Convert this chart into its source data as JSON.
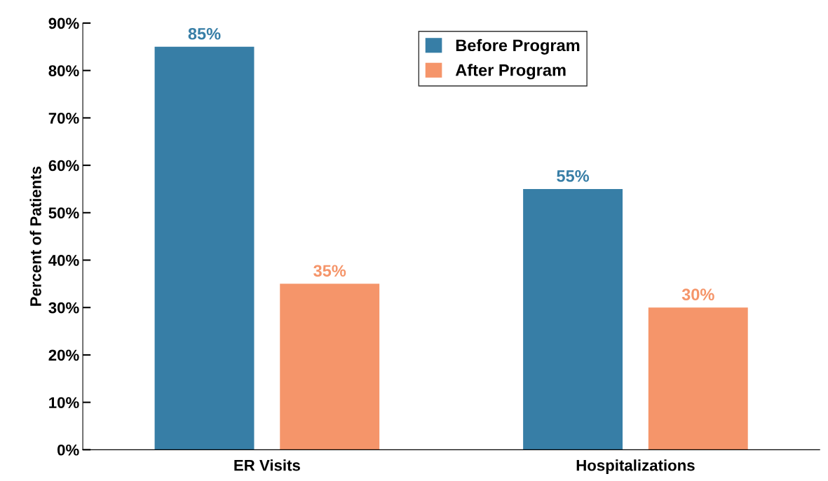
{
  "chart_data": {
    "type": "bar",
    "ylabel": "Percent of Patients",
    "categories": [
      "ER Visits",
      "Hospitalizations"
    ],
    "series": [
      {
        "name": "Before Program",
        "color": "#377ea6",
        "values": [
          85,
          55
        ],
        "value_labels": [
          "85%",
          "55%"
        ]
      },
      {
        "name": "After Program",
        "color": "#f5956a",
        "values": [
          35,
          30
        ],
        "value_labels": [
          "35%",
          "30%"
        ]
      }
    ],
    "ylim": [
      0,
      90
    ],
    "yticks": [
      {
        "value": 0,
        "label": "0%"
      },
      {
        "value": 10,
        "label": "10%"
      },
      {
        "value": 20,
        "label": "20%"
      },
      {
        "value": 30,
        "label": "30%"
      },
      {
        "value": 40,
        "label": "40%"
      },
      {
        "value": 50,
        "label": "50%"
      },
      {
        "value": 60,
        "label": "60%"
      },
      {
        "value": 70,
        "label": "70%"
      },
      {
        "value": 80,
        "label": "80%"
      },
      {
        "value": 90,
        "label": "90%"
      }
    ],
    "grid": false,
    "legend": "top"
  }
}
